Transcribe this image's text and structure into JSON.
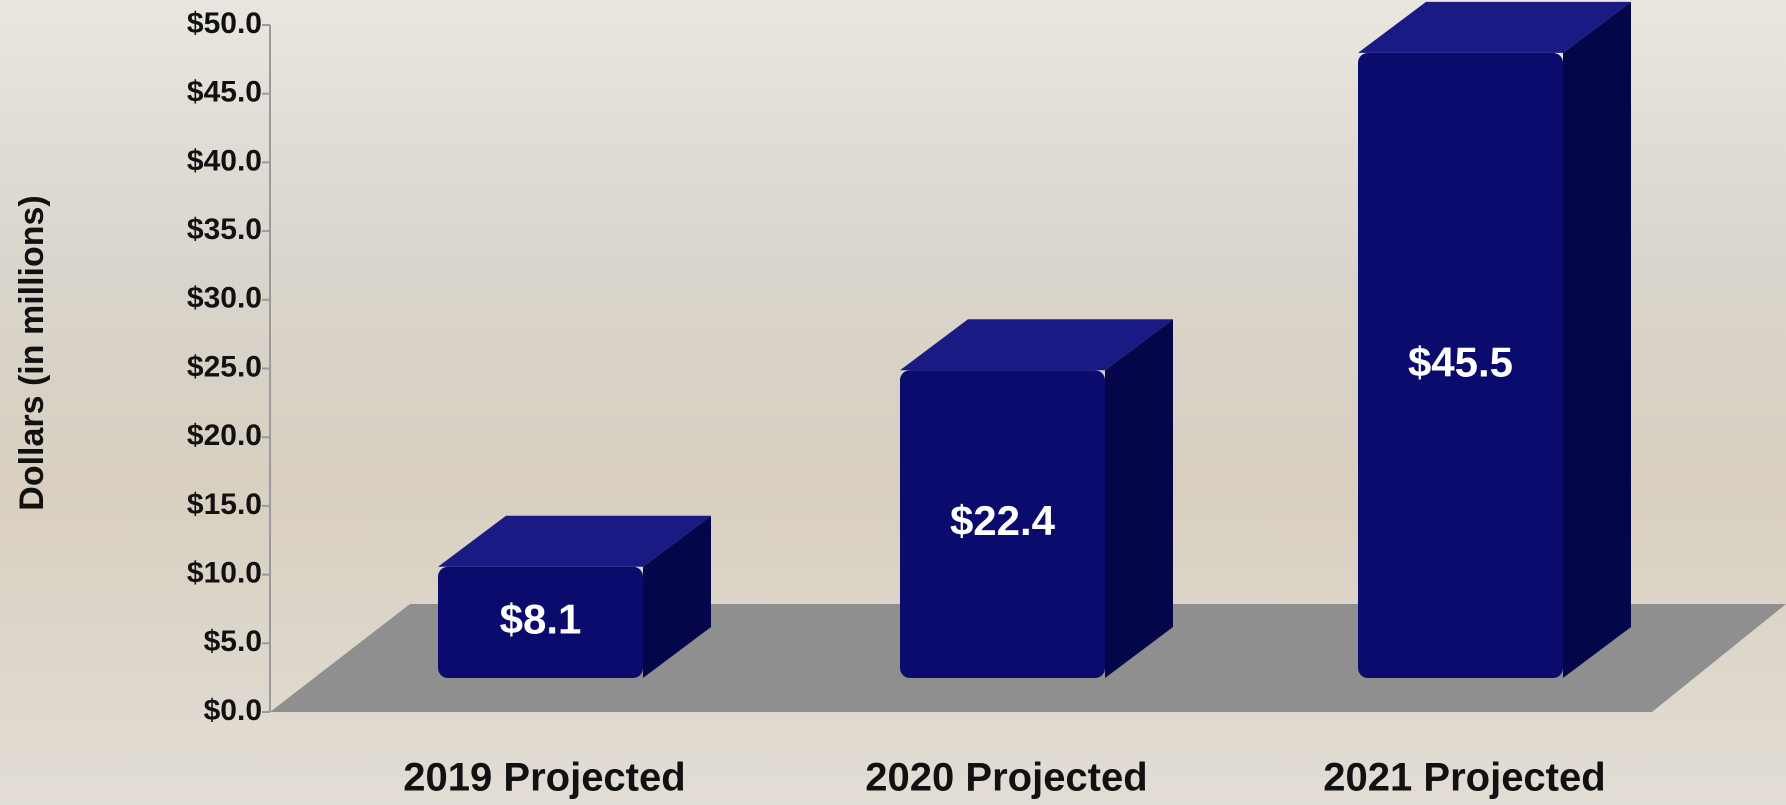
{
  "chart_data": {
    "type": "bar3d",
    "y_label": "Dollars (in millions)",
    "categories": [
      "2019 Projected",
      "2020 Projected",
      "2021 Projected"
    ],
    "values": [
      8.1,
      22.4,
      45.5
    ],
    "value_labels": [
      "$8.1",
      "$22.4",
      "$45.5"
    ],
    "color": "#0b0b6e",
    "ylim": [
      0,
      50
    ],
    "yticks": [
      {
        "value": 0,
        "label": "$0.0"
      },
      {
        "value": 5,
        "label": "$5.0"
      },
      {
        "value": 10,
        "label": "$10.0"
      },
      {
        "value": 15,
        "label": "$15.0"
      },
      {
        "value": 20,
        "label": "$20.0"
      },
      {
        "value": 25,
        "label": "$25.0"
      },
      {
        "value": 30,
        "label": "$30.0"
      },
      {
        "value": 35,
        "label": "$35.0"
      },
      {
        "value": 40,
        "label": "$40.0"
      },
      {
        "value": 45,
        "label": "$45.0"
      },
      {
        "value": 50,
        "label": "$50.0"
      }
    ]
  }
}
